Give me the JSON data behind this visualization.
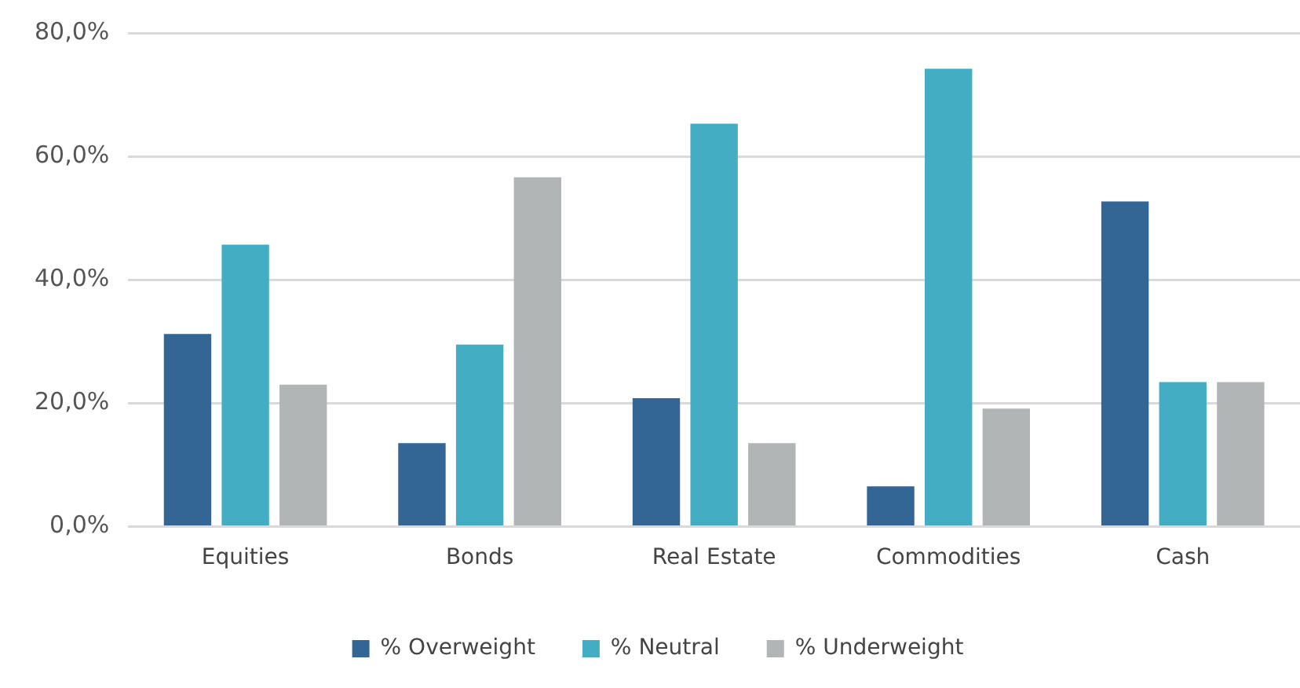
{
  "chart_data": {
    "type": "bar",
    "categories": [
      "Equities",
      "Bonds",
      "Real Estate",
      "Commodities",
      "Cash"
    ],
    "series": [
      {
        "name": "% Overweight",
        "color": "#336595",
        "values": [
          31.2,
          13.5,
          20.8,
          6.5,
          52.7
        ]
      },
      {
        "name": "% Neutral",
        "color": "#43adc4",
        "values": [
          45.7,
          29.5,
          65.3,
          74.2,
          23.4
        ]
      },
      {
        "name": "% Underweight",
        "color": "#b2b5b6",
        "values": [
          23.0,
          56.6,
          13.5,
          19.1,
          23.4
        ]
      }
    ],
    "ylim": [
      0,
      80
    ],
    "yticks": [
      {
        "value": 0,
        "label": "0,0%"
      },
      {
        "value": 20,
        "label": "20,0%"
      },
      {
        "value": 40,
        "label": "40,0%"
      },
      {
        "value": 60,
        "label": "60,0%"
      },
      {
        "value": 80,
        "label": "80,0%"
      }
    ],
    "grid": "y",
    "legend": "bottom"
  }
}
